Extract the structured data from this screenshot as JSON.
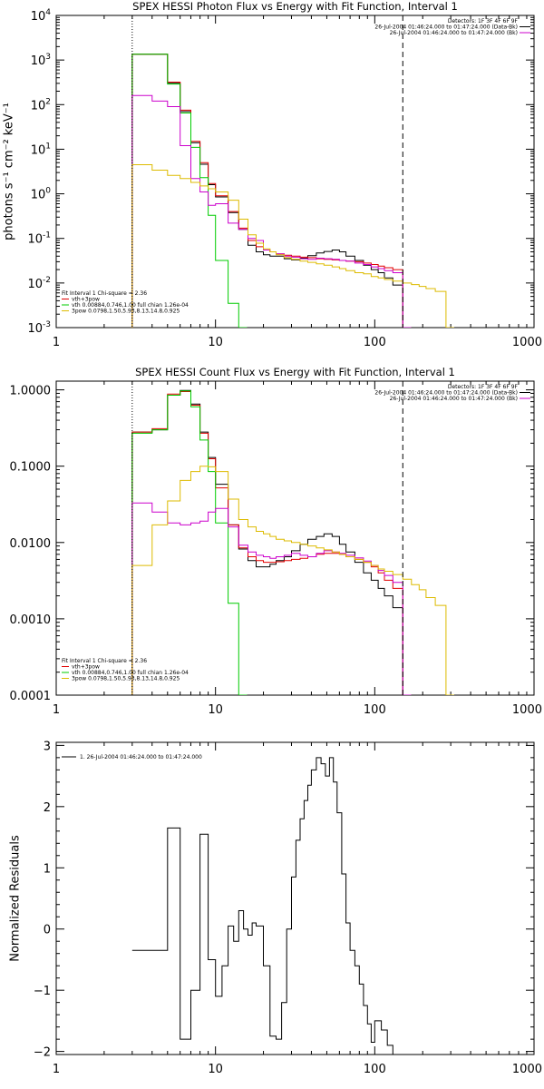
{
  "chart_data": [
    {
      "type": "line",
      "title": "SPEX HESSI Photon Flux vs Energy with Fit Function, Interval 1",
      "xlabel": "",
      "ylabel": "photons s⁻¹ cm⁻² keV⁻¹",
      "xscale": "log",
      "yscale": "log",
      "xlim": [
        1,
        1000
      ],
      "ylim": [
        0.001,
        10000
      ],
      "xticks": [
        {
          "v": 1,
          "label": "1"
        },
        {
          "v": 10,
          "label": "10"
        },
        {
          "v": 100,
          "label": "100"
        },
        {
          "v": 1000,
          "label": "1000"
        }
      ],
      "yticks": [
        {
          "v": 0.001,
          "base": "10",
          "exp": "-3"
        },
        {
          "v": 0.01,
          "base": "10",
          "exp": "-2"
        },
        {
          "v": 0.1,
          "base": "10",
          "exp": "-1"
        },
        {
          "v": 1,
          "base": "10",
          "exp": "0"
        },
        {
          "v": 10,
          "base": "10",
          "exp": "1"
        },
        {
          "v": 100,
          "base": "10",
          "exp": "2"
        },
        {
          "v": 1000,
          "base": "10",
          "exp": "3"
        },
        {
          "v": 10000,
          "base": "10",
          "exp": "4"
        }
      ],
      "vlines": [
        {
          "x": 3.0,
          "style": "dotted"
        },
        {
          "x": 150,
          "style": "dashed"
        }
      ],
      "info_lines": [
        {
          "text": "Detectors: 1F 3F 4F 6F 9F",
          "color": ""
        },
        {
          "text": "26-Jul-2004 01:46:24.000 to 01:47:24.000 (Data-Bk)",
          "color": "#000000"
        },
        {
          "text": "26-Jul-2004 01:46:24.000 to 01:47:24.000 (Bk)",
          "color": "#cc00cc"
        }
      ],
      "legend": [
        {
          "text": "Fit Interval 1     Chi-square = 2.36",
          "color": ""
        },
        {
          "text": "vth+3pow",
          "color": "#e00000"
        },
        {
          "text": "vth 0.00884,0.746,1.00   full chian 1.26e-04",
          "color": "#00cc00"
        },
        {
          "text": "3pow 0.0798,1.50,5.93,8.13,14.8,0.925",
          "color": "#ddbb00"
        }
      ],
      "series": [
        {
          "color": "#000000",
          "x": [
            3,
            4,
            5,
            6,
            7,
            8,
            9,
            10,
            12,
            14,
            16,
            18,
            20,
            22,
            24,
            27,
            30,
            34,
            38,
            43,
            48,
            54,
            60,
            66,
            75,
            85,
            95,
            105,
            115,
            130,
            150
          ],
          "y": [
            1350,
            1350,
            300,
            70,
            14,
            4.6,
            1.6,
            0.85,
            0.38,
            0.16,
            0.07,
            0.05,
            0.043,
            0.04,
            0.04,
            0.035,
            0.033,
            0.036,
            0.041,
            0.047,
            0.051,
            0.055,
            0.05,
            0.04,
            0.032,
            0.025,
            0.02,
            0.017,
            0.013,
            0.009,
            0.001
          ]
        },
        {
          "color": "#e00000",
          "x": [
            3,
            4,
            5,
            6,
            7,
            8,
            9,
            10,
            12,
            14,
            16,
            18,
            20,
            22,
            24,
            27,
            30,
            34,
            38,
            43,
            48,
            54,
            60,
            66,
            75,
            85,
            95,
            105,
            115,
            130,
            150
          ],
          "y": [
            1350,
            1350,
            320,
            75,
            15,
            5,
            1.7,
            0.9,
            0.4,
            0.17,
            0.09,
            0.065,
            0.055,
            0.05,
            0.045,
            0.042,
            0.04,
            0.038,
            0.037,
            0.035,
            0.034,
            0.033,
            0.032,
            0.031,
            0.03,
            0.028,
            0.026,
            0.024,
            0.022,
            0.02,
            0.001
          ]
        },
        {
          "color": "#00cc00",
          "x": [
            3,
            4,
            5,
            6,
            7,
            8,
            9,
            10,
            12,
            14
          ],
          "y": [
            1350,
            1350,
            290,
            65,
            11,
            2.3,
            0.33,
            0.032,
            0.0035,
            0.0005
          ]
        },
        {
          "color": "#cc00cc",
          "x": [
            3,
            4,
            5,
            6,
            7,
            8,
            9,
            10,
            12,
            14,
            16,
            18,
            20,
            22,
            24,
            27,
            30,
            34,
            38,
            43,
            48,
            54,
            60,
            66,
            75,
            85,
            95,
            105,
            115,
            130,
            150
          ],
          "y": [
            160,
            120,
            90,
            12,
            2.2,
            1.1,
            0.55,
            0.6,
            0.22,
            0.16,
            0.1,
            0.09,
            0.055,
            0.05,
            0.045,
            0.04,
            0.038,
            0.035,
            0.034,
            0.036,
            0.035,
            0.034,
            0.032,
            0.031,
            0.028,
            0.026,
            0.023,
            0.021,
            0.019,
            0.017,
            0.001
          ]
        },
        {
          "color": "#ddbb00",
          "x": [
            3,
            4,
            5,
            6,
            7,
            8,
            9,
            10,
            12,
            14,
            16,
            18,
            20,
            22,
            24,
            27,
            30,
            34,
            38,
            43,
            48,
            54,
            60,
            66,
            75,
            85,
            95,
            105,
            115,
            130,
            150,
            170,
            190,
            210,
            240,
            280
          ],
          "y": [
            4.5,
            3.4,
            2.6,
            2.2,
            1.8,
            1.5,
            1.3,
            1.1,
            0.72,
            0.27,
            0.12,
            0.078,
            0.058,
            0.05,
            0.043,
            0.037,
            0.034,
            0.031,
            0.029,
            0.027,
            0.025,
            0.023,
            0.021,
            0.019,
            0.017,
            0.016,
            0.014,
            0.013,
            0.012,
            0.011,
            0.01,
            0.0092,
            0.0084,
            0.0075,
            0.0065,
            0.0008
          ]
        }
      ]
    },
    {
      "type": "line",
      "title": "SPEX HESSI Count Flux vs Energy with Fit Function, Interval 1",
      "xlabel": "",
      "ylabel": "",
      "xscale": "log",
      "yscale": "log",
      "xlim": [
        1,
        1000
      ],
      "ylim": [
        0.0001,
        1.3
      ],
      "xticks": [
        {
          "v": 1,
          "label": "1"
        },
        {
          "v": 10,
          "label": "10"
        },
        {
          "v": 100,
          "label": "100"
        },
        {
          "v": 1000,
          "label": "1000"
        }
      ],
      "yticks": [
        {
          "v": 0.0001,
          "label": "0.0001"
        },
        {
          "v": 0.001,
          "label": "0.0010"
        },
        {
          "v": 0.01,
          "label": "0.0100"
        },
        {
          "v": 0.1,
          "label": "0.1000"
        },
        {
          "v": 1,
          "label": "1.0000"
        }
      ],
      "vlines": [
        {
          "x": 3.0,
          "style": "dotted"
        },
        {
          "x": 150,
          "style": "dashed"
        }
      ],
      "info_lines": [
        {
          "text": "Detectors: 1F 3F 4F 6F 9F",
          "color": ""
        },
        {
          "text": "26-Jul-2004 01:46:24.000 to 01:47:24.000 (Data-Bk)",
          "color": "#000000"
        },
        {
          "text": "26-Jul-2004 01:46:24.000 to 01:47:24.000 (Bk)",
          "color": "#cc00cc"
        }
      ],
      "legend": [
        {
          "text": "Fit Interval 1     Chi-square = 2.36",
          "color": ""
        },
        {
          "text": "vth+3pow",
          "color": "#e00000"
        },
        {
          "text": "vth 0.00884,0.746,1.00   full chian 1.26e-04",
          "color": "#00cc00"
        },
        {
          "text": "3pow 0.0798,1.50,5.93,8.13,14.8,0.925",
          "color": "#ddbb00"
        }
      ],
      "series": [
        {
          "color": "#000000",
          "x": [
            3,
            4,
            5,
            6,
            7,
            8,
            9,
            10,
            12,
            14,
            16,
            18,
            20,
            22,
            24,
            27,
            30,
            34,
            38,
            43,
            48,
            54,
            60,
            66,
            75,
            85,
            95,
            105,
            115,
            130,
            150
          ],
          "y": [
            0.28,
            0.3,
            0.85,
            0.98,
            0.65,
            0.28,
            0.13,
            0.058,
            0.017,
            0.0082,
            0.0058,
            0.0048,
            0.0048,
            0.0052,
            0.0058,
            0.0065,
            0.0078,
            0.0095,
            0.011,
            0.012,
            0.013,
            0.012,
            0.0095,
            0.0075,
            0.0055,
            0.004,
            0.0032,
            0.0025,
            0.002,
            0.0014,
            0.0001
          ]
        },
        {
          "color": "#e00000",
          "x": [
            3,
            4,
            5,
            6,
            7,
            8,
            9,
            10,
            12,
            14,
            16,
            18,
            20,
            22,
            24,
            27,
            30,
            34,
            38,
            43,
            48,
            54,
            60,
            66,
            75,
            85,
            95,
            105,
            115,
            130,
            150
          ],
          "y": [
            0.28,
            0.31,
            0.88,
            0.95,
            0.63,
            0.27,
            0.125,
            0.052,
            0.017,
            0.0085,
            0.0065,
            0.0058,
            0.0055,
            0.0055,
            0.0056,
            0.0058,
            0.006,
            0.0062,
            0.0065,
            0.007,
            0.0072,
            0.0072,
            0.007,
            0.0065,
            0.006,
            0.0055,
            0.0048,
            0.004,
            0.0032,
            0.0025,
            0.0001
          ]
        },
        {
          "color": "#00cc00",
          "x": [
            3,
            4,
            5,
            6,
            7,
            8,
            9,
            10,
            12,
            14
          ],
          "y": [
            0.27,
            0.3,
            0.85,
            0.97,
            0.6,
            0.22,
            0.085,
            0.018,
            0.0016,
            0.0001
          ]
        },
        {
          "color": "#cc00cc",
          "x": [
            3,
            4,
            5,
            6,
            7,
            8,
            9,
            10,
            12,
            14,
            16,
            18,
            20,
            22,
            24,
            27,
            30,
            34,
            38,
            43,
            48,
            54,
            60,
            66,
            75,
            85,
            95,
            105,
            115,
            130,
            150
          ],
          "y": [
            0.033,
            0.025,
            0.018,
            0.017,
            0.018,
            0.019,
            0.025,
            0.028,
            0.016,
            0.0092,
            0.0075,
            0.0068,
            0.0065,
            0.0062,
            0.0065,
            0.0068,
            0.0072,
            0.0068,
            0.0065,
            0.0072,
            0.0078,
            0.0075,
            0.0072,
            0.0068,
            0.0063,
            0.0057,
            0.005,
            0.0043,
            0.0037,
            0.003,
            0.0001
          ]
        },
        {
          "color": "#ddbb00",
          "x": [
            3,
            4,
            5,
            6,
            7,
            8,
            9,
            10,
            12,
            14,
            16,
            18,
            20,
            22,
            24,
            27,
            30,
            34,
            38,
            43,
            48,
            54,
            60,
            66,
            75,
            85,
            95,
            105,
            115,
            130,
            150,
            170,
            190,
            210,
            240,
            280
          ],
          "y": [
            0.005,
            0.017,
            0.035,
            0.065,
            0.085,
            0.1,
            0.098,
            0.085,
            0.037,
            0.02,
            0.016,
            0.014,
            0.013,
            0.012,
            0.011,
            0.0105,
            0.01,
            0.0095,
            0.009,
            0.0085,
            0.008,
            0.0075,
            0.007,
            0.0065,
            0.006,
            0.0055,
            0.005,
            0.0045,
            0.0042,
            0.0038,
            0.0033,
            0.0028,
            0.0024,
            0.0019,
            0.0015,
            0.0001
          ]
        }
      ]
    },
    {
      "type": "line",
      "title": "",
      "xlabel": "",
      "ylabel": "Normalized Residuals",
      "xscale": "log",
      "yscale": "linear",
      "xlim": [
        1,
        1000
      ],
      "ylim": [
        -2.05,
        3.05
      ],
      "xticks": [
        {
          "v": 1,
          "label": "1"
        },
        {
          "v": 10,
          "label": "10"
        },
        {
          "v": 100,
          "label": "100"
        },
        {
          "v": 1000,
          "label": "1000"
        }
      ],
      "yticks": [
        {
          "v": -2,
          "label": "−2"
        },
        {
          "v": -1,
          "label": "−1"
        },
        {
          "v": 0,
          "label": "0"
        },
        {
          "v": 1,
          "label": "1"
        },
        {
          "v": 2,
          "label": "2"
        },
        {
          "v": 3,
          "label": "3"
        }
      ],
      "vlines": [],
      "info_lines": [],
      "legend": [
        {
          "text": "1. 26-Jul-2004 01:46:24.000 to 01:47:24.000",
          "color": "#000000"
        }
      ],
      "series": [
        {
          "color": "#000000",
          "x": [
            3,
            4,
            5,
            6,
            7,
            8,
            9,
            10,
            11,
            12,
            13,
            14,
            15,
            16,
            17,
            18,
            20,
            22,
            24,
            26,
            28,
            30,
            32,
            34,
            36,
            38,
            40,
            43,
            46,
            49,
            52,
            55,
            58,
            62,
            66,
            70,
            75,
            80,
            85,
            90,
            95,
            100,
            110,
            120,
            130,
            140,
            150
          ],
          "y": [
            -0.35,
            -0.35,
            1.65,
            -1.8,
            -1.0,
            1.55,
            -0.5,
            -1.1,
            -0.6,
            0.05,
            -0.2,
            0.3,
            0.0,
            -0.1,
            0.1,
            0.05,
            -0.6,
            -1.75,
            -1.8,
            -1.2,
            0.0,
            0.85,
            1.45,
            1.8,
            2.1,
            2.35,
            2.6,
            2.8,
            2.7,
            2.5,
            2.8,
            2.4,
            1.9,
            0.9,
            0.1,
            -0.35,
            -0.6,
            -0.9,
            -1.25,
            -1.55,
            -1.85,
            -1.5,
            -1.65,
            -1.9,
            -2.05,
            -2.05,
            -2.05
          ]
        }
      ]
    }
  ]
}
